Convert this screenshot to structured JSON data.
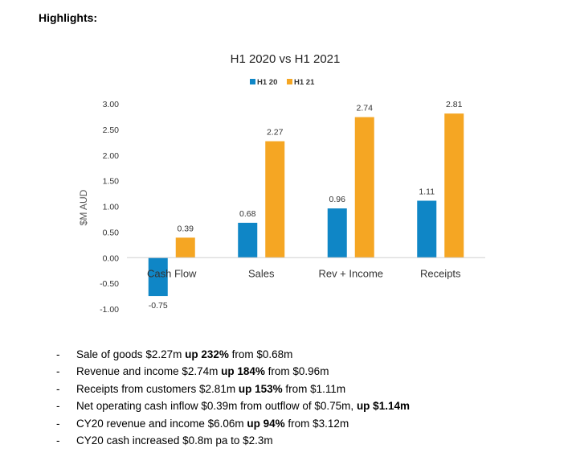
{
  "heading": "Highlights:",
  "chart_data": {
    "type": "bar",
    "title": "H1 2020 vs H1 2021",
    "ylabel": "$M AUD",
    "xlabel": "",
    "ylim": [
      -1.0,
      3.0
    ],
    "yticks": [
      3.0,
      2.5,
      2.0,
      1.5,
      1.0,
      0.5,
      0.0,
      -0.5,
      -1.0
    ],
    "ytick_labels": [
      "3.00",
      "2.50",
      "2.00",
      "1.50",
      "1.00",
      "0.50",
      "0.00",
      "-0.50",
      "-1.00"
    ],
    "categories": [
      "Cash Flow",
      "Sales",
      "Rev + Income",
      "Receipts"
    ],
    "series": [
      {
        "name": "H1 20",
        "color": "#0f86c6",
        "values": [
          -0.75,
          0.68,
          0.96,
          1.11
        ],
        "labels": [
          "-0.75",
          "0.68",
          "0.96",
          "1.11"
        ]
      },
      {
        "name": "H1 21",
        "color": "#f5a623",
        "values": [
          0.39,
          2.27,
          2.74,
          2.81
        ],
        "labels": [
          "0.39",
          "2.27",
          "2.74",
          "2.81"
        ]
      }
    ],
    "legend": "top-center",
    "grid": false
  },
  "bullets": [
    {
      "dash": "-",
      "before": "Sale of goods $2.27m ",
      "bold": "up 232%",
      "after": " from $0.68m"
    },
    {
      "dash": "-",
      "before": "Revenue and income $2.74m ",
      "bold": "up 184%",
      "after": " from $0.96m"
    },
    {
      "dash": "-",
      "before": "Receipts from customers $2.81m ",
      "bold": "up 153%",
      "after": " from $1.11m"
    },
    {
      "dash": "-",
      "before": "Net operating cash inflow $0.39m from outflow of $0.75m, ",
      "bold": "up $1.14m",
      "after": ""
    },
    {
      "dash": "-",
      "before": "CY20 revenue and income $6.06m ",
      "bold": "up 94%",
      "after": " from $3.12m"
    },
    {
      "dash": "-",
      "before": "CY20 cash increased $0.8m pa to $2.3m",
      "bold": "",
      "after": ""
    }
  ]
}
